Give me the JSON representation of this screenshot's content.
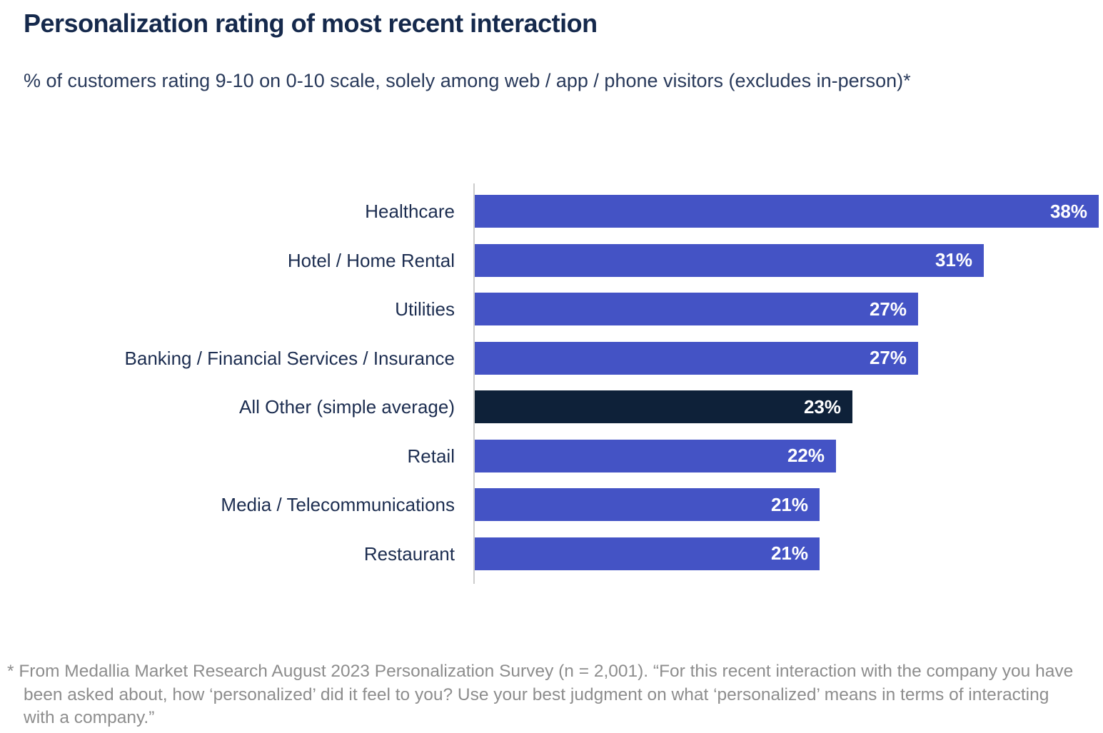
{
  "page": {
    "title": "Personalization rating of most recent interaction",
    "subtitle": "% of customers rating 9-10 on 0-10 scale, solely among web / app / phone visitors (excludes in-person)*",
    "footnote": "* From Medallia Market Research August 2023 Personalization Survey (n = 2,001). “For this recent interaction with the company you have been asked about, how ‘personalized’ did it feel to you? Use your best judgment on what ‘personalized’ means in terms of interacting with a company.”"
  },
  "colors": {
    "bar_primary": "#4453c5",
    "bar_highlight": "#0e2139",
    "title_text": "#15294c",
    "subtitle_text": "#28395a",
    "label_text": "#1c2d50",
    "value_text": "#ffffff",
    "footnote_text": "#8d8d8d",
    "axis_line": "#cccccc",
    "background": "#ffffff"
  },
  "chart_data": {
    "type": "bar",
    "orientation": "horizontal",
    "title": "Personalization rating of most recent interaction",
    "subtitle": "% of customers rating 9-10 on 0-10 scale, solely among web / app / phone visitors (excludes in-person)*",
    "categories": [
      "Healthcare",
      "Hotel / Home Rental",
      "Utilities",
      "Banking / Financial Services / Insurance",
      "All Other (simple average)",
      "Retail",
      "Media / Telecommunications",
      "Restaurant"
    ],
    "values": [
      38,
      31,
      27,
      27,
      23,
      22,
      21,
      21
    ],
    "value_labels": [
      "38%",
      "31%",
      "27%",
      "27%",
      "23%",
      "22%",
      "21%",
      "21%"
    ],
    "value_suffix": "%",
    "highlight_index": 4,
    "highlight_category": "All Other (simple average)",
    "data_labels": "inside-end",
    "xlim": [
      0,
      40
    ],
    "grid": false,
    "legend": false,
    "xlabel": "",
    "ylabel": ""
  }
}
